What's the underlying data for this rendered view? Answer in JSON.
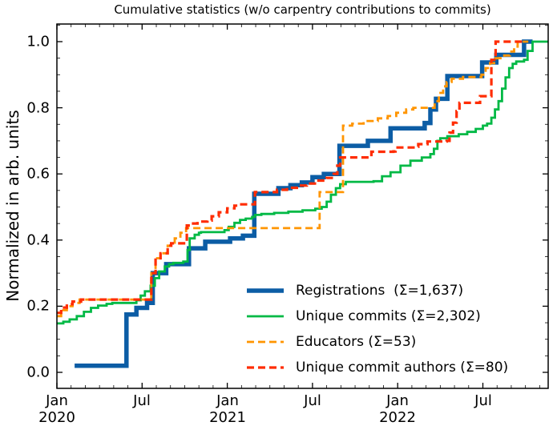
{
  "title": "Cumulative statistics (w/o carpentry contributions to commits)",
  "ylabel": "Normalized in arb. units",
  "chart_data": {
    "type": "line",
    "title": "Cumulative statistics (w/o carpentry contributions to commits)",
    "xlabel": "",
    "ylabel": "Normalized in arb. units",
    "x_unit": "months since Jan 2020",
    "xlim": [
      0,
      34.6
    ],
    "ylim": [
      -0.053,
      1.053
    ],
    "grid": false,
    "tick_style": "inward ticks on all four spines, minor ticks monthly and every 0.05",
    "legend_position": "lower right, frameless",
    "x_ticks": [
      {
        "m": 0,
        "month": "Jan",
        "year": "2020"
      },
      {
        "m": 6,
        "month": "Jul",
        "year": ""
      },
      {
        "m": 12,
        "month": "Jan",
        "year": "2021"
      },
      {
        "m": 18,
        "month": "Jul",
        "year": ""
      },
      {
        "m": 24,
        "month": "Jan",
        "year": "2022"
      },
      {
        "m": 30,
        "month": "Jul",
        "year": ""
      }
    ],
    "y_ticks": [
      {
        "v": 0.0,
        "label": "0.0"
      },
      {
        "v": 0.2,
        "label": "0.2"
      },
      {
        "v": 0.4,
        "label": "0.4"
      },
      {
        "v": 0.6,
        "label": "0.6"
      },
      {
        "v": 0.8,
        "label": "0.8"
      },
      {
        "v": 1.0,
        "label": "1.0"
      }
    ],
    "series": [
      {
        "name": "Registrations  (Σ=1,637)",
        "total": 1637,
        "color": "#0C5DA5",
        "style": "solid",
        "width": 5.5,
        "points": [
          [
            1.25,
            0.02
          ],
          [
            4.9,
            0.175
          ],
          [
            5.6,
            0.195
          ],
          [
            6.35,
            0.21
          ],
          [
            6.75,
            0.3
          ],
          [
            7.7,
            0.327
          ],
          [
            9.3,
            0.375
          ],
          [
            10.45,
            0.395
          ],
          [
            12.2,
            0.405
          ],
          [
            13.1,
            0.413
          ],
          [
            13.9,
            0.54
          ],
          [
            15.6,
            0.557
          ],
          [
            16.45,
            0.566
          ],
          [
            17.25,
            0.574
          ],
          [
            18.0,
            0.59
          ],
          [
            18.8,
            0.6
          ],
          [
            19.9,
            0.685
          ],
          [
            21.9,
            0.7
          ],
          [
            23.5,
            0.738
          ],
          [
            25.9,
            0.754
          ],
          [
            26.3,
            0.795
          ],
          [
            26.7,
            0.827
          ],
          [
            27.5,
            0.896
          ],
          [
            29.95,
            0.937
          ],
          [
            30.95,
            0.96
          ],
          [
            32.9,
            1.0
          ],
          [
            33.5,
            1.0
          ]
        ]
      },
      {
        "name": "Unique commits (Σ=2,302)",
        "total": 2302,
        "color": "#00B945",
        "style": "solid",
        "width": 2.8,
        "points": [
          [
            0,
            0.148
          ],
          [
            0.45,
            0.153
          ],
          [
            0.9,
            0.16
          ],
          [
            1.4,
            0.17
          ],
          [
            1.9,
            0.183
          ],
          [
            2.4,
            0.195
          ],
          [
            2.9,
            0.202
          ],
          [
            3.5,
            0.207
          ],
          [
            3.9,
            0.21
          ],
          [
            5.35,
            0.21
          ],
          [
            5.6,
            0.218
          ],
          [
            5.9,
            0.232
          ],
          [
            6.2,
            0.245
          ],
          [
            6.6,
            0.262
          ],
          [
            6.9,
            0.285
          ],
          [
            7.2,
            0.305
          ],
          [
            7.6,
            0.32
          ],
          [
            7.9,
            0.327
          ],
          [
            8.2,
            0.331
          ],
          [
            8.9,
            0.335
          ],
          [
            9.2,
            0.37
          ],
          [
            9.35,
            0.405
          ],
          [
            9.7,
            0.416
          ],
          [
            10.0,
            0.422
          ],
          [
            10.15,
            0.424
          ],
          [
            11.5,
            0.424
          ],
          [
            11.8,
            0.43
          ],
          [
            12.1,
            0.44
          ],
          [
            12.5,
            0.452
          ],
          [
            12.9,
            0.461
          ],
          [
            13.3,
            0.465
          ],
          [
            13.75,
            0.47
          ],
          [
            13.95,
            0.476
          ],
          [
            14.4,
            0.479
          ],
          [
            15.3,
            0.482
          ],
          [
            16.3,
            0.486
          ],
          [
            17.3,
            0.49
          ],
          [
            18.2,
            0.495
          ],
          [
            18.65,
            0.5
          ],
          [
            19.0,
            0.516
          ],
          [
            19.3,
            0.537
          ],
          [
            19.65,
            0.557
          ],
          [
            19.95,
            0.569
          ],
          [
            20.35,
            0.576
          ],
          [
            22.3,
            0.578
          ],
          [
            22.9,
            0.593
          ],
          [
            23.5,
            0.605
          ],
          [
            24.2,
            0.625
          ],
          [
            24.9,
            0.64
          ],
          [
            25.7,
            0.65
          ],
          [
            26.3,
            0.66
          ],
          [
            26.55,
            0.676
          ],
          [
            26.8,
            0.7
          ],
          [
            27.0,
            0.708
          ],
          [
            27.5,
            0.714
          ],
          [
            28.3,
            0.72
          ],
          [
            28.9,
            0.727
          ],
          [
            29.5,
            0.736
          ],
          [
            30.0,
            0.746
          ],
          [
            30.3,
            0.752
          ],
          [
            30.6,
            0.77
          ],
          [
            30.85,
            0.795
          ],
          [
            31.1,
            0.82
          ],
          [
            31.35,
            0.858
          ],
          [
            31.6,
            0.892
          ],
          [
            31.85,
            0.92
          ],
          [
            32.1,
            0.933
          ],
          [
            32.35,
            0.94
          ],
          [
            32.9,
            0.945
          ],
          [
            33.15,
            0.972
          ],
          [
            33.5,
            1.0
          ],
          [
            34.6,
            1.0
          ]
        ]
      },
      {
        "name": "Educators (Σ=53)",
        "total": 53,
        "color": "#FF9500",
        "style": "dashed",
        "width": 2.8,
        "points": [
          [
            0,
            0.17
          ],
          [
            0.3,
            0.188
          ],
          [
            0.7,
            0.2
          ],
          [
            1.1,
            0.21
          ],
          [
            1.6,
            0.22
          ],
          [
            6.45,
            0.22
          ],
          [
            6.65,
            0.3
          ],
          [
            6.95,
            0.345
          ],
          [
            7.3,
            0.36
          ],
          [
            7.8,
            0.383
          ],
          [
            8.05,
            0.392
          ],
          [
            8.3,
            0.405
          ],
          [
            8.7,
            0.422
          ],
          [
            9.1,
            0.436
          ],
          [
            18.45,
            0.436
          ],
          [
            18.5,
            0.545
          ],
          [
            20.1,
            0.545
          ],
          [
            20.15,
            0.746
          ],
          [
            20.8,
            0.752
          ],
          [
            21.6,
            0.76
          ],
          [
            22.6,
            0.768
          ],
          [
            23.3,
            0.775
          ],
          [
            23.9,
            0.785
          ],
          [
            24.6,
            0.795
          ],
          [
            25.1,
            0.8
          ],
          [
            26.35,
            0.8
          ],
          [
            26.6,
            0.82
          ],
          [
            26.9,
            0.845
          ],
          [
            27.2,
            0.865
          ],
          [
            27.45,
            0.878
          ],
          [
            27.8,
            0.888
          ],
          [
            28.6,
            0.893
          ],
          [
            29.9,
            0.9
          ],
          [
            30.2,
            0.92
          ],
          [
            30.5,
            0.935
          ],
          [
            30.9,
            0.95
          ],
          [
            31.5,
            0.958
          ],
          [
            31.9,
            0.97
          ],
          [
            32.2,
            0.985
          ],
          [
            32.45,
            1.0
          ],
          [
            33.2,
            1.0
          ]
        ]
      },
      {
        "name": "Unique commit authors (Σ=80)",
        "total": 80,
        "color": "#FF2C00",
        "style": "dashed",
        "width": 3.2,
        "points": [
          [
            0,
            0.18
          ],
          [
            0.3,
            0.196
          ],
          [
            0.7,
            0.206
          ],
          [
            1.1,
            0.214
          ],
          [
            1.7,
            0.22
          ],
          [
            6.45,
            0.22
          ],
          [
            6.65,
            0.3
          ],
          [
            6.95,
            0.345
          ],
          [
            7.3,
            0.36
          ],
          [
            7.8,
            0.383
          ],
          [
            8.05,
            0.39
          ],
          [
            9.1,
            0.39
          ],
          [
            9.15,
            0.444
          ],
          [
            9.5,
            0.45
          ],
          [
            9.9,
            0.456
          ],
          [
            10.6,
            0.459
          ],
          [
            10.9,
            0.472
          ],
          [
            11.4,
            0.484
          ],
          [
            12.0,
            0.496
          ],
          [
            12.5,
            0.504
          ],
          [
            12.8,
            0.508
          ],
          [
            13.6,
            0.508
          ],
          [
            13.95,
            0.545
          ],
          [
            15.5,
            0.552
          ],
          [
            16.2,
            0.558
          ],
          [
            16.9,
            0.565
          ],
          [
            17.6,
            0.571
          ],
          [
            18.3,
            0.58
          ],
          [
            19.0,
            0.588
          ],
          [
            19.5,
            0.6
          ],
          [
            19.75,
            0.625
          ],
          [
            19.95,
            0.65
          ],
          [
            22.05,
            0.652
          ],
          [
            22.15,
            0.667
          ],
          [
            23.7,
            0.668
          ],
          [
            23.85,
            0.68
          ],
          [
            25.2,
            0.682
          ],
          [
            25.45,
            0.69
          ],
          [
            26.1,
            0.698
          ],
          [
            27.45,
            0.7
          ],
          [
            27.65,
            0.725
          ],
          [
            27.9,
            0.755
          ],
          [
            28.15,
            0.79
          ],
          [
            28.35,
            0.815
          ],
          [
            29.65,
            0.815
          ],
          [
            29.8,
            0.835
          ],
          [
            30.5,
            0.835
          ],
          [
            30.6,
            0.945
          ],
          [
            30.8,
            0.95
          ],
          [
            30.9,
            1.0
          ],
          [
            32.8,
            1.0
          ]
        ]
      }
    ]
  }
}
